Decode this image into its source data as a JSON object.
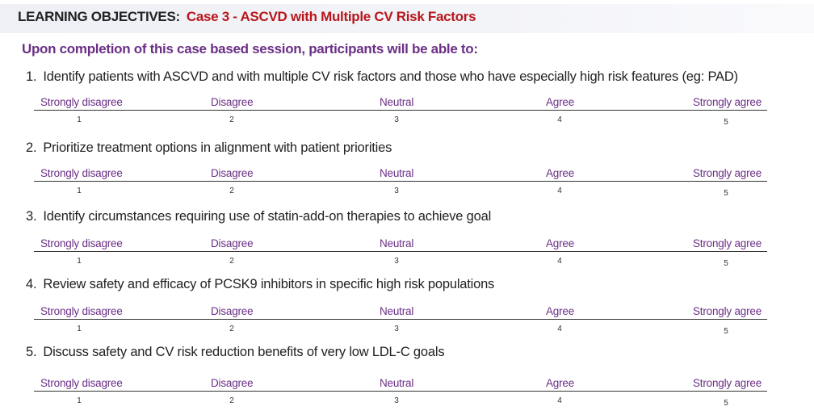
{
  "header": {
    "prefix": "LEARNING OBJECTIVES:",
    "title": "Case 3 - ASCVD with Multiple CV Risk Factors"
  },
  "intro": "Upon completion of this case based session, participants will be able to:",
  "scale": {
    "labels": [
      "Strongly disagree",
      "Disagree",
      "Neutral",
      "Agree",
      "Strongly agree"
    ],
    "numbers": [
      "1",
      "2",
      "3",
      "4",
      "5"
    ]
  },
  "objectives": [
    {
      "num": "1.",
      "text": "Identify patients with ASCVD and with multiple CV risk factors and those who have especially high risk features (eg: PAD)"
    },
    {
      "num": "2.",
      "text": "Prioritize treatment options in alignment with patient priorities"
    },
    {
      "num": "3.",
      "text": "Identify circumstances requiring use of statin-add-on therapies to achieve goal"
    },
    {
      "num": "4.",
      "text": "Review safety and efficacy of PCSK9 inhibitors in specific high risk populations"
    },
    {
      "num": "5.",
      "text": "Discuss safety and CV risk reduction benefits of very low LDL-C goals"
    }
  ],
  "colors": {
    "header_title": "#b8161c",
    "intro": "#6b2f86",
    "scale_label": "#6b2f86"
  }
}
